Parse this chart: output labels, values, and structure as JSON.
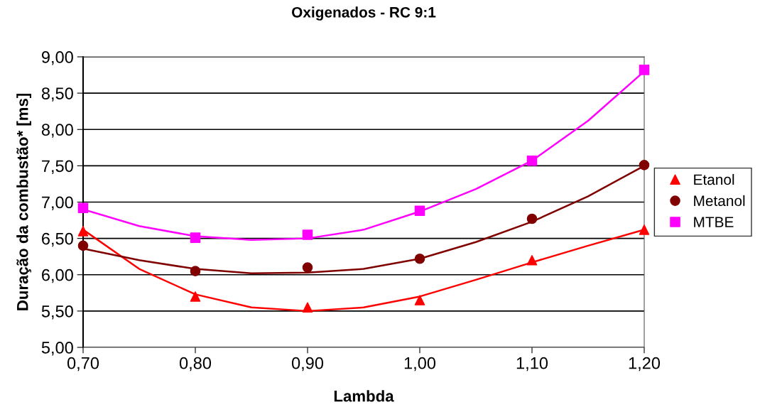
{
  "chart_data": {
    "type": "scatter",
    "title": "Oxigenados - RC 9:1",
    "xlabel": "Lambda",
    "ylabel": "Duração da combustão* [ms]",
    "xlim": [
      0.7,
      1.2
    ],
    "ylim": [
      5,
      9
    ],
    "xticks": [
      {
        "value": 0.7,
        "label": "0,70"
      },
      {
        "value": 0.8,
        "label": "0,80"
      },
      {
        "value": 0.9,
        "label": "0,90"
      },
      {
        "value": 1.0,
        "label": "1,00"
      },
      {
        "value": 1.1,
        "label": "1,10"
      },
      {
        "value": 1.2,
        "label": "1,20"
      }
    ],
    "yticks": [
      {
        "value": 5,
        "label": "5,00"
      },
      {
        "value": 5.5,
        "label": "5,50"
      },
      {
        "value": 6,
        "label": "6,00"
      },
      {
        "value": 6.5,
        "label": "6,50"
      },
      {
        "value": 7,
        "label": "7,00"
      },
      {
        "value": 7.5,
        "label": "7,50"
      },
      {
        "value": 8,
        "label": "8,00"
      },
      {
        "value": 8.5,
        "label": "8,50"
      },
      {
        "value": 9,
        "label": "9,00"
      }
    ],
    "grid": "y",
    "legend": "right",
    "series": [
      {
        "type": "line",
        "color": "#ff0000",
        "marker": "none",
        "x": [
          0.7,
          0.75,
          0.8,
          0.85,
          0.9,
          0.95,
          1.0,
          1.05,
          1.1,
          1.15,
          1.2
        ],
        "values": [
          6.62,
          6.08,
          5.73,
          5.55,
          5.5,
          5.55,
          5.7,
          5.93,
          6.17,
          6.4,
          6.62
        ]
      },
      {
        "type": "line",
        "color": "#800000",
        "marker": "none",
        "x": [
          0.7,
          0.75,
          0.8,
          0.85,
          0.9,
          0.95,
          1.0,
          1.05,
          1.1,
          1.15,
          1.2
        ],
        "values": [
          6.36,
          6.2,
          6.08,
          6.02,
          6.03,
          6.08,
          6.22,
          6.45,
          6.73,
          7.08,
          7.5
        ]
      },
      {
        "type": "line",
        "color": "#ff00ff",
        "marker": "none",
        "x": [
          0.7,
          0.75,
          0.8,
          0.85,
          0.9,
          0.95,
          1.0,
          1.05,
          1.1,
          1.15,
          1.2
        ],
        "values": [
          6.9,
          6.67,
          6.53,
          6.48,
          6.5,
          6.62,
          6.87,
          7.18,
          7.57,
          8.12,
          8.8
        ]
      },
      {
        "name": "Etanol",
        "color": "#ff0000",
        "marker": "triangle",
        "x": [
          0.7,
          0.8,
          0.9,
          1.0,
          1.1,
          1.2
        ],
        "values": [
          6.6,
          5.7,
          5.55,
          5.65,
          6.2,
          6.62
        ]
      },
      {
        "name": "Metanol",
        "color": "#800000",
        "marker": "circle",
        "x": [
          0.7,
          0.8,
          0.9,
          1.0,
          1.1,
          1.2
        ],
        "values": [
          6.4,
          6.05,
          6.1,
          6.22,
          6.77,
          7.51
        ]
      },
      {
        "name": "MTBE",
        "color": "#ff00ff",
        "marker": "square",
        "x": [
          0.7,
          0.8,
          0.9,
          1.0,
          1.1,
          1.2
        ],
        "values": [
          6.92,
          6.51,
          6.55,
          6.88,
          7.57,
          8.82
        ]
      }
    ]
  }
}
